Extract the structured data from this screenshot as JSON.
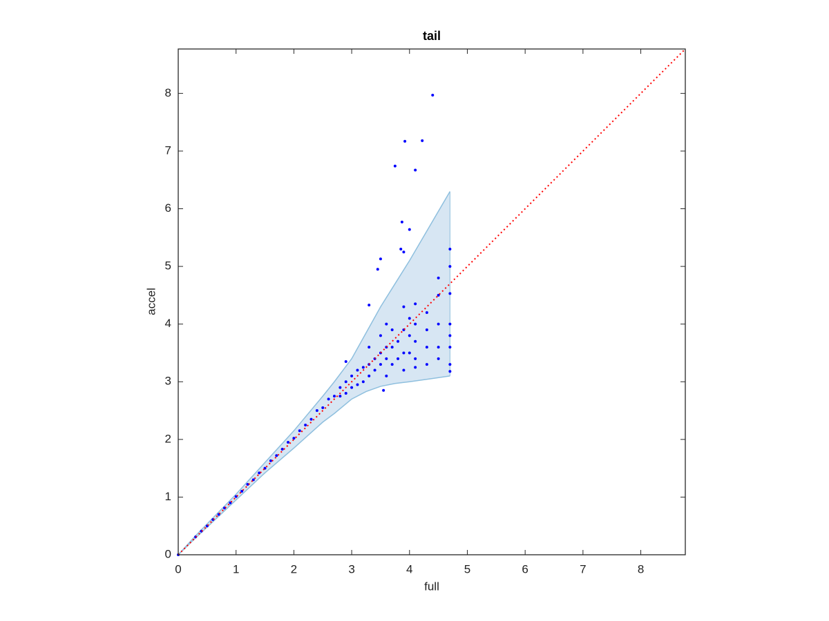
{
  "chart_data": {
    "type": "scatter",
    "title": "tail",
    "xlabel": "full",
    "ylabel": "accel",
    "xlim": [
      0,
      8.77
    ],
    "ylim": [
      0,
      8.77
    ],
    "xticks": [
      0,
      1,
      2,
      3,
      4,
      5,
      6,
      7,
      8
    ],
    "yticks": [
      0,
      1,
      2,
      3,
      4,
      5,
      6,
      7,
      8
    ],
    "band": {
      "fill": "#d7e6f3",
      "edge": "#8ebfde",
      "x": [
        0,
        0.3,
        1,
        1.5,
        2,
        2.5,
        2.7,
        3,
        3.25,
        3.5,
        3.75,
        4,
        4.35,
        4.7
      ],
      "upper": [
        0,
        0.33,
        1.05,
        1.6,
        2.15,
        2.75,
        3.0,
        3.4,
        3.85,
        4.3,
        4.7,
        5.1,
        5.7,
        6.3
      ],
      "lower": [
        0,
        0.29,
        0.95,
        1.42,
        1.85,
        2.3,
        2.45,
        2.7,
        2.83,
        2.92,
        2.97,
        3.0,
        3.05,
        3.1
      ]
    },
    "reference": {
      "color": "#ff0000",
      "x": [
        0,
        8.77
      ],
      "y": [
        0,
        8.77
      ]
    },
    "series": [
      {
        "color": "#0000ff",
        "x": [
          0,
          0.3,
          0.4,
          0.5,
          0.6,
          0.7,
          0.8,
          0.9,
          1.0,
          1.1,
          1.2,
          1.3,
          1.4,
          1.5,
          1.6,
          1.7,
          1.8,
          1.9,
          2.0,
          2.1,
          2.2,
          2.3,
          2.4,
          2.5,
          2.6,
          2.7,
          2.8,
          4.4,
          3.92,
          4.22,
          3.75,
          4.1,
          3.87,
          4.0,
          3.85,
          3.9,
          3.5,
          3.45,
          3.3,
          2.9,
          4.7,
          4.7,
          4.7,
          4.7,
          4.7,
          4.7,
          4.7,
          4.7,
          4.5,
          4.5,
          4.5,
          4.5,
          4.5,
          4.3,
          4.3,
          4.3,
          4.3,
          4.1,
          4.1,
          4.1,
          4.1,
          4.1,
          4.0,
          4.0,
          4.0,
          3.9,
          3.9,
          3.9,
          3.9,
          3.8,
          3.8,
          3.7,
          3.7,
          3.7,
          3.6,
          3.6,
          3.6,
          3.55,
          3.5,
          3.5,
          3.4,
          3.4,
          3.3,
          3.3,
          3.2,
          3.2,
          3.1,
          3.1,
          3.0,
          3.0,
          2.9,
          2.9,
          2.8,
          3.6,
          3.5,
          3.3
        ],
        "y": [
          0,
          0.31,
          0.41,
          0.5,
          0.61,
          0.7,
          0.81,
          0.9,
          1.01,
          1.1,
          1.22,
          1.3,
          1.42,
          1.5,
          1.63,
          1.72,
          1.83,
          1.95,
          2.02,
          2.15,
          2.25,
          2.35,
          2.5,
          2.55,
          2.7,
          2.75,
          2.9,
          7.97,
          7.17,
          7.18,
          6.74,
          6.67,
          5.77,
          5.64,
          5.3,
          5.25,
          5.13,
          4.95,
          4.33,
          3.35,
          5.3,
          5.0,
          4.53,
          4.0,
          3.8,
          3.6,
          3.3,
          3.18,
          4.8,
          4.5,
          4.0,
          3.6,
          3.4,
          4.2,
          3.9,
          3.6,
          3.3,
          4.35,
          4.0,
          3.7,
          3.4,
          3.25,
          4.1,
          3.8,
          3.5,
          4.3,
          3.9,
          3.5,
          3.2,
          3.7,
          3.4,
          3.9,
          3.6,
          3.3,
          3.6,
          3.4,
          3.1,
          2.85,
          3.5,
          3.3,
          3.4,
          3.2,
          3.3,
          3.1,
          3.25,
          3.0,
          3.2,
          2.95,
          3.1,
          2.9,
          3.0,
          2.8,
          2.75,
          4.0,
          3.8,
          3.6
        ]
      }
    ]
  }
}
